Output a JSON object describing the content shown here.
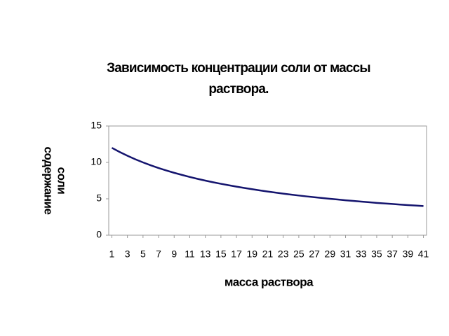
{
  "chart_data": {
    "type": "line",
    "title": [
      "Зависимость концентрации соли от массы",
      "раствора."
    ],
    "x_label": "масса  раствора",
    "y_label": [
      "содержание",
      "соли"
    ],
    "x": [
      1,
      2,
      3,
      4,
      5,
      6,
      7,
      8,
      9,
      10,
      11,
      12,
      13,
      14,
      15,
      16,
      17,
      18,
      19,
      20,
      21,
      22,
      23,
      24,
      25,
      26,
      27,
      28,
      29,
      30,
      31,
      32,
      33,
      34,
      35,
      36,
      37,
      38,
      39,
      40,
      41
    ],
    "series": [
      {
        "color": "#14146e",
        "values": [
          12,
          11.43,
          10.91,
          10.43,
          10,
          9.6,
          9.23,
          8.89,
          8.57,
          8.28,
          8,
          7.74,
          7.5,
          7.27,
          7.06,
          6.86,
          6.67,
          6.49,
          6.32,
          6.15,
          6,
          5.85,
          5.71,
          5.58,
          5.45,
          5.33,
          5.22,
          5.11,
          5,
          4.9,
          4.8,
          4.71,
          4.62,
          4.53,
          4.44,
          4.36,
          4.29,
          4.21,
          4.14,
          4.07,
          4
        ]
      }
    ],
    "xlim": [
      0.6,
      41.4
    ],
    "xticks": [
      1,
      3,
      5,
      7,
      9,
      11,
      13,
      15,
      17,
      19,
      21,
      23,
      25,
      27,
      29,
      31,
      33,
      35,
      37,
      39,
      41
    ],
    "ylim": [
      0,
      15
    ],
    "yticks": [
      0,
      5,
      10,
      15
    ],
    "grid": false
  }
}
